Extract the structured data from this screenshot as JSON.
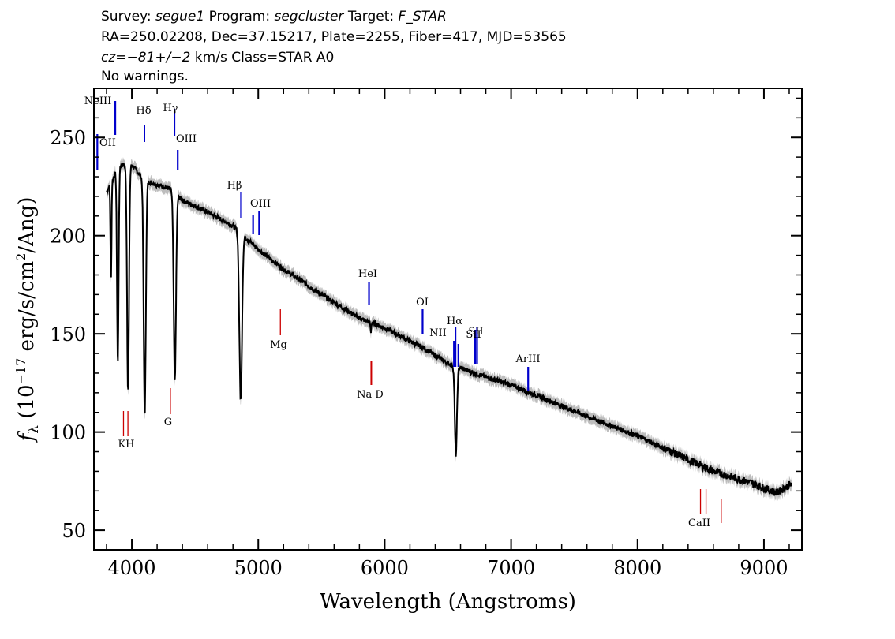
{
  "header": {
    "line1": {
      "survey_label": "Survey:",
      "survey": "segue1",
      "program_label": "Program:",
      "program": "segcluster",
      "target_label": "Target:",
      "target": "F_STAR"
    },
    "line2": "RA=250.02208, Dec=37.15217, Plate=2255, Fiber=417, MJD=53565",
    "line3": {
      "cz": "cz=−81+/−2",
      "unit": "km/s",
      "class_text": "Class=STAR A0"
    },
    "line4": "No warnings."
  },
  "chart_data": {
    "type": "line",
    "xlabel": "Wavelength (Angstroms)",
    "ylabel": "f_λ (10^-17 erg/s/cm^2/Ang)",
    "xlim": [
      3700,
      9300
    ],
    "ylim": [
      40,
      275
    ],
    "x_ticks": [
      4000,
      5000,
      6000,
      7000,
      8000,
      9000
    ],
    "y_ticks": [
      50,
      100,
      150,
      200,
      250
    ],
    "grid": false,
    "colors": {
      "spectrum": "#000000",
      "error": "#bdbdbd",
      "emission": "#0000cc",
      "absorption": "#cc0000"
    },
    "continuum": [
      [
        3800,
        222
      ],
      [
        3900,
        236
      ],
      [
        4000,
        236
      ],
      [
        4100,
        228
      ],
      [
        4200,
        226
      ],
      [
        4300,
        224
      ],
      [
        4400,
        218
      ],
      [
        4600,
        212
      ],
      [
        4800,
        205
      ],
      [
        5000,
        193
      ],
      [
        5200,
        183
      ],
      [
        5500,
        170
      ],
      [
        5800,
        158
      ],
      [
        6000,
        153
      ],
      [
        6300,
        143
      ],
      [
        6500,
        135
      ],
      [
        6800,
        128
      ],
      [
        7000,
        124
      ],
      [
        7300,
        116
      ],
      [
        7600,
        108
      ],
      [
        8000,
        98
      ],
      [
        8300,
        89
      ],
      [
        8600,
        80
      ],
      [
        8900,
        74
      ],
      [
        9100,
        69
      ],
      [
        9200,
        73
      ]
    ],
    "absorption_dips": [
      {
        "center": 3835,
        "depth": 50,
        "width": 6
      },
      {
        "center": 3889,
        "depth": 100,
        "width": 9
      },
      {
        "center": 3970,
        "depth": 115,
        "width": 11
      },
      {
        "center": 4102,
        "depth": 120,
        "width": 12
      },
      {
        "center": 4340,
        "depth": 95,
        "width": 13
      },
      {
        "center": 4861,
        "depth": 85,
        "width": 15
      },
      {
        "center": 5890,
        "depth": 5,
        "width": 4
      },
      {
        "center": 6563,
        "depth": 45,
        "width": 12
      }
    ],
    "emission_lines": [
      {
        "label": "OII",
        "wavelength": 3727
      },
      {
        "label": "NeIII",
        "wavelength": 3869
      },
      {
        "label": "Hδ",
        "wavelength": 4102
      },
      {
        "label": "Hγ",
        "wavelength": 4340
      },
      {
        "label": "OIII",
        "wavelength": 4363
      },
      {
        "label": "Hβ",
        "wavelength": 4861
      },
      {
        "label": "OIII",
        "wavelength": 4959
      },
      {
        "label": "OIII",
        "wavelength": 5007
      },
      {
        "label": "HeI",
        "wavelength": 5876
      },
      {
        "label": "OI",
        "wavelength": 6300
      },
      {
        "label": "NII",
        "wavelength": 6548
      },
      {
        "label": "Hα",
        "wavelength": 6563
      },
      {
        "label": "NII",
        "wavelength": 6583
      },
      {
        "label": "SII",
        "wavelength": 6716
      },
      {
        "label": "SII",
        "wavelength": 6731
      },
      {
        "label": "ArIII",
        "wavelength": 7135
      }
    ],
    "absorption_lines": [
      {
        "label": "K",
        "wavelength": 3934
      },
      {
        "label": "H",
        "wavelength": 3969
      },
      {
        "label": "G",
        "wavelength": 4305
      },
      {
        "label": "Mg",
        "wavelength": 5175
      },
      {
        "label": "Na D",
        "wavelength": 5894
      },
      {
        "label": "CaII",
        "wavelength": 8498
      },
      {
        "label": "CaII",
        "wavelength": 8542
      },
      {
        "label": "CaII",
        "wavelength": 8662
      }
    ],
    "absorption_label_text": {
      "kh": "KH",
      "g": "G",
      "mg": "Mg",
      "nad": "Na D",
      "caii": "CaII"
    }
  }
}
